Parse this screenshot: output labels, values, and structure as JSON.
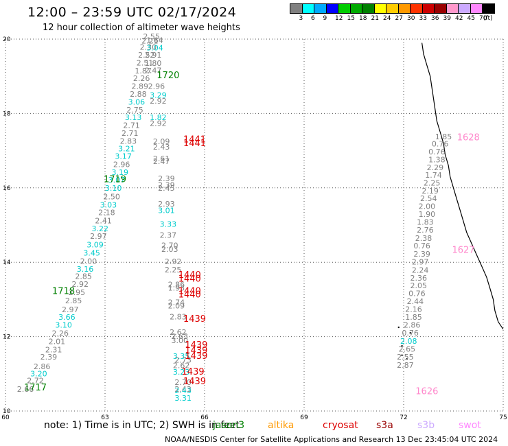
{
  "header": {
    "title": "12:00 – 23:59 UTC 02/17/2024",
    "subtitle": "12 hour collection of altimeter wave heights"
  },
  "legend": {
    "colors": [
      "#808080",
      "#00ffff",
      "#00aaff",
      "#0000ff",
      "#00cc00",
      "#00aa00",
      "#008000",
      "#ffff00",
      "#ffcc00",
      "#ff9900",
      "#ff3300",
      "#cc0000",
      "#990000",
      "#ff99cc",
      "#ccaaff",
      "#ff88ff",
      "#000000"
    ],
    "labels": [
      "3",
      "6",
      "9",
      "12",
      "15",
      "18",
      "21",
      "24",
      "27",
      "30",
      "33",
      "36",
      "39",
      "42",
      "45",
      "70",
      "(ft)"
    ]
  },
  "axes": {
    "x_ticks": [
      "60",
      "63",
      "66",
      "69",
      "72",
      "75"
    ],
    "y_ticks": [
      "10",
      "12",
      "14",
      "16",
      "18",
      "20"
    ]
  },
  "missions": [
    {
      "name": "jason3",
      "color": "#008000"
    },
    {
      "name": "altika",
      "color": "#ff9900"
    },
    {
      "name": "cryosat",
      "color": "#dd0000"
    },
    {
      "name": "s3a",
      "color": "#990000"
    },
    {
      "name": "s3b",
      "color": "#ccaaff"
    },
    {
      "name": "swot",
      "color": "#ff88ff"
    }
  ],
  "footer": {
    "note": "note:  1) Time is in UTC; 2) SWH is in feet",
    "credit": "NOAA/NESDIS Center for Satellite Applications and Research    13 Dec 23:45:04 UTC 2024"
  },
  "map": {
    "lon_range": [
      60,
      75
    ],
    "lat_range": [
      10,
      20
    ],
    "grid": true,
    "values": [
      {
        "lon": 60.6,
        "lat": 10.52,
        "v": "2.66",
        "c": "#808080"
      },
      {
        "lon": 60.9,
        "lat": 10.75,
        "v": "2.72",
        "c": "#808080"
      },
      {
        "lon": 61.0,
        "lat": 10.93,
        "v": "3.20",
        "c": "#00cccc"
      },
      {
        "lon": 61.1,
        "lat": 11.13,
        "v": "2.86",
        "c": "#808080"
      },
      {
        "lon": 61.3,
        "lat": 11.38,
        "v": "2.39",
        "c": "#808080"
      },
      {
        "lon": 61.45,
        "lat": 11.58,
        "v": "2.31",
        "c": "#808080"
      },
      {
        "lon": 61.55,
        "lat": 11.8,
        "v": "2.01",
        "c": "#808080"
      },
      {
        "lon": 61.65,
        "lat": 12.02,
        "v": "2.26",
        "c": "#808080"
      },
      {
        "lon": 61.75,
        "lat": 12.24,
        "v": "3.10",
        "c": "#00cccc"
      },
      {
        "lon": 61.85,
        "lat": 12.45,
        "v": "3.66",
        "c": "#00cccc"
      },
      {
        "lon": 61.95,
        "lat": 12.66,
        "v": "2.97",
        "c": "#808080"
      },
      {
        "lon": 62.05,
        "lat": 12.9,
        "v": "2.85",
        "c": "#808080"
      },
      {
        "lon": 62.15,
        "lat": 13.12,
        "v": "2.95",
        "c": "#808080"
      },
      {
        "lon": 62.25,
        "lat": 13.34,
        "v": "2.92",
        "c": "#808080"
      },
      {
        "lon": 62.35,
        "lat": 13.55,
        "v": "2.85",
        "c": "#808080"
      },
      {
        "lon": 62.4,
        "lat": 13.75,
        "v": "3.16",
        "c": "#00cccc"
      },
      {
        "lon": 62.5,
        "lat": 13.96,
        "v": "2.00",
        "c": "#808080"
      },
      {
        "lon": 62.6,
        "lat": 14.18,
        "v": "3.45",
        "c": "#00cccc"
      },
      {
        "lon": 62.7,
        "lat": 14.4,
        "v": "3.09",
        "c": "#00cccc"
      },
      {
        "lon": 62.8,
        "lat": 14.63,
        "v": "2.97",
        "c": "#808080"
      },
      {
        "lon": 62.85,
        "lat": 14.83,
        "v": "3.22",
        "c": "#00cccc"
      },
      {
        "lon": 62.95,
        "lat": 15.05,
        "v": "2.41",
        "c": "#808080"
      },
      {
        "lon": 63.05,
        "lat": 15.27,
        "v": "2.18",
        "c": "#808080"
      },
      {
        "lon": 63.1,
        "lat": 15.47,
        "v": "3.03",
        "c": "#00cccc"
      },
      {
        "lon": 63.2,
        "lat": 15.69,
        "v": "2.50",
        "c": "#808080"
      },
      {
        "lon": 63.25,
        "lat": 15.92,
        "v": "3.10",
        "c": "#00cccc"
      },
      {
        "lon": 63.35,
        "lat": 16.14,
        "v": "3.07",
        "c": "#00cccc"
      },
      {
        "lon": 63.45,
        "lat": 16.35,
        "v": "3.19",
        "c": "#00cccc"
      },
      {
        "lon": 63.5,
        "lat": 16.56,
        "v": "2.96",
        "c": "#808080"
      },
      {
        "lon": 63.55,
        "lat": 16.78,
        "v": "3.17",
        "c": "#00cccc"
      },
      {
        "lon": 63.65,
        "lat": 16.98,
        "v": "3.21",
        "c": "#00cccc"
      },
      {
        "lon": 63.7,
        "lat": 17.19,
        "v": "2.83",
        "c": "#808080"
      },
      {
        "lon": 63.75,
        "lat": 17.4,
        "v": "2.71",
        "c": "#808080"
      },
      {
        "lon": 63.8,
        "lat": 17.61,
        "v": "2.71",
        "c": "#808080"
      },
      {
        "lon": 63.85,
        "lat": 17.82,
        "v": "3.13",
        "c": "#00cccc"
      },
      {
        "lon": 63.9,
        "lat": 18.03,
        "v": "2.75",
        "c": "#808080"
      },
      {
        "lon": 63.95,
        "lat": 18.24,
        "v": "3.06",
        "c": "#00cccc"
      },
      {
        "lon": 64.0,
        "lat": 18.45,
        "v": "2.88",
        "c": "#808080"
      },
      {
        "lon": 64.05,
        "lat": 18.66,
        "v": "2.89",
        "c": "#808080"
      },
      {
        "lon": 64.1,
        "lat": 18.87,
        "v": "2.26",
        "c": "#808080"
      },
      {
        "lon": 64.15,
        "lat": 19.08,
        "v": "1.87",
        "c": "#808080"
      },
      {
        "lon": 64.2,
        "lat": 19.29,
        "v": "2.51",
        "c": "#808080"
      },
      {
        "lon": 64.25,
        "lat": 19.5,
        "v": "2.52",
        "c": "#808080"
      },
      {
        "lon": 64.3,
        "lat": 19.71,
        "v": "2.30",
        "c": "#808080"
      },
      {
        "lon": 64.35,
        "lat": 19.88,
        "v": "2.21",
        "c": "#808080"
      },
      {
        "lon": 64.4,
        "lat": 20.0,
        "v": "2.55",
        "c": "#808080"
      },
      {
        "lon": 64.45,
        "lat": 19.5,
        "v": "2.91",
        "c": "#808080"
      },
      {
        "lon": 64.5,
        "lat": 19.7,
        "v": "3.04",
        "c": "#00cccc"
      },
      {
        "lon": 64.45,
        "lat": 19.28,
        "v": "1.80",
        "c": "#808080"
      },
      {
        "lon": 64.45,
        "lat": 19.09,
        "v": "2.47",
        "c": "#808080"
      },
      {
        "lon": 64.5,
        "lat": 19.9,
        "v": "1.64",
        "c": "#808080"
      },
      {
        "lon": 64.55,
        "lat": 18.66,
        "v": "2.96",
        "c": "#808080"
      },
      {
        "lon": 64.6,
        "lat": 18.42,
        "v": "3.29",
        "c": "#00cccc"
      },
      {
        "lon": 64.6,
        "lat": 18.27,
        "v": "2.92",
        "c": "#808080"
      },
      {
        "lon": 64.6,
        "lat": 17.82,
        "v": "1.82",
        "c": "#00cccc"
      },
      {
        "lon": 64.6,
        "lat": 17.67,
        "v": "2.92",
        "c": "#808080"
      },
      {
        "lon": 64.7,
        "lat": 17.18,
        "v": "2.09",
        "c": "#808080"
      },
      {
        "lon": 64.7,
        "lat": 17.03,
        "v": "2.43",
        "c": "#808080"
      },
      {
        "lon": 64.7,
        "lat": 16.72,
        "v": "2.61",
        "c": "#808080"
      },
      {
        "lon": 64.7,
        "lat": 16.64,
        "v": "2.47",
        "c": "#808080"
      },
      {
        "lon": 64.85,
        "lat": 16.18,
        "v": "2.39",
        "c": "#808080"
      },
      {
        "lon": 64.85,
        "lat": 16.01,
        "v": "2.39",
        "c": "#808080"
      },
      {
        "lon": 64.85,
        "lat": 15.92,
        "v": "2.45",
        "c": "#808080"
      },
      {
        "lon": 64.85,
        "lat": 15.5,
        "v": "2.93",
        "c": "#808080"
      },
      {
        "lon": 64.85,
        "lat": 15.32,
        "v": "3.01",
        "c": "#00cccc"
      },
      {
        "lon": 64.9,
        "lat": 14.95,
        "v": "3.33",
        "c": "#00cccc"
      },
      {
        "lon": 64.9,
        "lat": 14.66,
        "v": "2.37",
        "c": "#808080"
      },
      {
        "lon": 64.95,
        "lat": 14.38,
        "v": "2.70",
        "c": "#808080"
      },
      {
        "lon": 64.95,
        "lat": 14.28,
        "v": "2.03",
        "c": "#808080"
      },
      {
        "lon": 65.05,
        "lat": 13.95,
        "v": "2.92",
        "c": "#808080"
      },
      {
        "lon": 65.05,
        "lat": 13.73,
        "v": "2.25",
        "c": "#808080"
      },
      {
        "lon": 65.15,
        "lat": 13.33,
        "v": "2.86",
        "c": "#808080"
      },
      {
        "lon": 65.15,
        "lat": 13.24,
        "v": "1.93",
        "c": "#808080"
      },
      {
        "lon": 65.15,
        "lat": 12.85,
        "v": "2.74",
        "c": "#808080"
      },
      {
        "lon": 65.15,
        "lat": 12.76,
        "v": "2.09",
        "c": "#808080"
      },
      {
        "lon": 65.2,
        "lat": 12.46,
        "v": "2.83",
        "c": "#808080"
      },
      {
        "lon": 65.2,
        "lat": 12.05,
        "v": "2.62",
        "c": "#808080"
      },
      {
        "lon": 65.25,
        "lat": 11.94,
        "v": "2.63",
        "c": "#808080"
      },
      {
        "lon": 65.25,
        "lat": 11.83,
        "v": "3.00",
        "c": "#808080"
      },
      {
        "lon": 65.3,
        "lat": 11.4,
        "v": "3.35",
        "c": "#00cccc"
      },
      {
        "lon": 65.35,
        "lat": 11.3,
        "v": "2.73",
        "c": "#808080"
      },
      {
        "lon": 65.3,
        "lat": 11.15,
        "v": "2.62",
        "c": "#808080"
      },
      {
        "lon": 65.3,
        "lat": 10.98,
        "v": "3.23",
        "c": "#00cccc"
      },
      {
        "lon": 65.35,
        "lat": 10.7,
        "v": "2.70",
        "c": "#808080"
      },
      {
        "lon": 65.35,
        "lat": 10.52,
        "v": "2.43",
        "c": "#808080"
      },
      {
        "lon": 65.35,
        "lat": 10.48,
        "v": "2.43",
        "c": "#00cccc"
      },
      {
        "lon": 65.35,
        "lat": 10.28,
        "v": "3.31",
        "c": "#00cccc"
      },
      {
        "lon": 73.2,
        "lat": 17.31,
        "v": "1.85",
        "c": "#808080"
      },
      {
        "lon": 73.1,
        "lat": 17.11,
        "v": "0.76",
        "c": "#808080"
      },
      {
        "lon": 73.0,
        "lat": 16.9,
        "v": "0.76",
        "c": "#808080"
      },
      {
        "lon": 73.0,
        "lat": 16.69,
        "v": "1.38",
        "c": "#808080"
      },
      {
        "lon": 72.95,
        "lat": 16.48,
        "v": "2.29",
        "c": "#808080"
      },
      {
        "lon": 72.9,
        "lat": 16.27,
        "v": "1.74",
        "c": "#808080"
      },
      {
        "lon": 72.85,
        "lat": 16.06,
        "v": "2.25",
        "c": "#808080"
      },
      {
        "lon": 72.8,
        "lat": 15.85,
        "v": "2.19",
        "c": "#808080"
      },
      {
        "lon": 72.75,
        "lat": 15.65,
        "v": "2.54",
        "c": "#808080"
      },
      {
        "lon": 72.7,
        "lat": 15.43,
        "v": "2.00",
        "c": "#808080"
      },
      {
        "lon": 72.7,
        "lat": 15.22,
        "v": "1.90",
        "c": "#808080"
      },
      {
        "lon": 72.65,
        "lat": 15.01,
        "v": "1.83",
        "c": "#808080"
      },
      {
        "lon": 72.65,
        "lat": 14.8,
        "v": "2.76",
        "c": "#808080"
      },
      {
        "lon": 72.6,
        "lat": 14.58,
        "v": "2.38",
        "c": "#808080"
      },
      {
        "lon": 72.55,
        "lat": 14.37,
        "v": "0.76",
        "c": "#808080"
      },
      {
        "lon": 72.55,
        "lat": 14.15,
        "v": "2.39",
        "c": "#808080"
      },
      {
        "lon": 72.5,
        "lat": 13.94,
        "v": "2.97",
        "c": "#808080"
      },
      {
        "lon": 72.5,
        "lat": 13.72,
        "v": "2.24",
        "c": "#808080"
      },
      {
        "lon": 72.45,
        "lat": 13.51,
        "v": "2.36",
        "c": "#808080"
      },
      {
        "lon": 72.45,
        "lat": 13.3,
        "v": "2.05",
        "c": "#808080"
      },
      {
        "lon": 72.4,
        "lat": 13.09,
        "v": "0.76",
        "c": "#808080"
      },
      {
        "lon": 72.35,
        "lat": 12.88,
        "v": "2.44",
        "c": "#808080"
      },
      {
        "lon": 72.3,
        "lat": 12.67,
        "v": "2.16",
        "c": "#808080"
      },
      {
        "lon": 72.3,
        "lat": 12.45,
        "v": "1.85",
        "c": "#808080"
      },
      {
        "lon": 72.25,
        "lat": 12.24,
        "v": "2.86",
        "c": "#808080"
      },
      {
        "lon": 72.2,
        "lat": 12.03,
        "v": "0.76",
        "c": "#808080"
      },
      {
        "lon": 72.15,
        "lat": 11.81,
        "v": "2.08",
        "c": "#00cccc"
      },
      {
        "lon": 72.1,
        "lat": 11.6,
        "v": "2.65",
        "c": "#808080"
      },
      {
        "lon": 72.05,
        "lat": 11.38,
        "v": "2.55",
        "c": "#808080"
      },
      {
        "lon": 72.05,
        "lat": 11.16,
        "v": "2.87",
        "c": "#808080"
      }
    ],
    "track_labels": [
      {
        "lon": 64.9,
        "lat": 18.95,
        "t": "1720",
        "c": "#008000"
      },
      {
        "lon": 63.3,
        "lat": 16.15,
        "t": "1719",
        "c": "#008000"
      },
      {
        "lon": 61.75,
        "lat": 13.15,
        "t": "1718",
        "c": "#008000"
      },
      {
        "lon": 60.9,
        "lat": 10.55,
        "t": "1717",
        "c": "#008000"
      },
      {
        "lon": 65.7,
        "lat": 17.22,
        "t": "1441",
        "c": "#dd0000"
      },
      {
        "lon": 65.7,
        "lat": 17.12,
        "t": "1441",
        "c": "#dd0000"
      },
      {
        "lon": 65.55,
        "lat": 13.58,
        "t": "1440",
        "c": "#dd0000"
      },
      {
        "lon": 65.55,
        "lat": 13.48,
        "t": "1440",
        "c": "#dd0000"
      },
      {
        "lon": 65.55,
        "lat": 13.15,
        "t": "1440",
        "c": "#dd0000"
      },
      {
        "lon": 65.55,
        "lat": 13.05,
        "t": "1440",
        "c": "#dd0000"
      },
      {
        "lon": 65.7,
        "lat": 12.4,
        "t": "1439",
        "c": "#dd0000"
      },
      {
        "lon": 65.75,
        "lat": 11.7,
        "t": "1439",
        "c": "#dd0000"
      },
      {
        "lon": 65.75,
        "lat": 11.55,
        "t": "1439",
        "c": "#dd0000"
      },
      {
        "lon": 65.75,
        "lat": 11.4,
        "t": "1439",
        "c": "#dd0000"
      },
      {
        "lon": 65.65,
        "lat": 10.98,
        "t": "1439",
        "c": "#dd0000"
      },
      {
        "lon": 65.7,
        "lat": 10.72,
        "t": "1439",
        "c": "#dd0000"
      },
      {
        "lon": 73.95,
        "lat": 17.28,
        "t": "1628",
        "c": "#ff88cc"
      },
      {
        "lon": 73.8,
        "lat": 14.25,
        "t": "1627",
        "c": "#ff88cc"
      },
      {
        "lon": 72.7,
        "lat": 10.45,
        "t": "1626",
        "c": "#ff88cc"
      }
    ],
    "coast": [
      [
        72.55,
        19.9
      ],
      [
        72.6,
        19.6
      ],
      [
        72.7,
        19.3
      ],
      [
        72.8,
        19.0
      ],
      [
        72.85,
        18.7
      ],
      [
        72.9,
        18.4
      ],
      [
        72.95,
        18.1
      ],
      [
        73.0,
        17.8
      ],
      [
        73.1,
        17.5
      ],
      [
        73.2,
        17.2
      ],
      [
        73.25,
        16.9
      ],
      [
        73.35,
        16.6
      ],
      [
        73.4,
        16.3
      ],
      [
        73.5,
        16.0
      ],
      [
        73.6,
        15.7
      ],
      [
        73.7,
        15.4
      ],
      [
        73.8,
        15.1
      ],
      [
        73.9,
        14.8
      ],
      [
        74.05,
        14.5
      ],
      [
        74.2,
        14.2
      ],
      [
        74.35,
        13.9
      ],
      [
        74.5,
        13.6
      ],
      [
        74.6,
        13.3
      ],
      [
        74.7,
        13.0
      ],
      [
        74.75,
        12.7
      ],
      [
        74.85,
        12.4
      ],
      [
        75.0,
        12.2
      ]
    ]
  }
}
